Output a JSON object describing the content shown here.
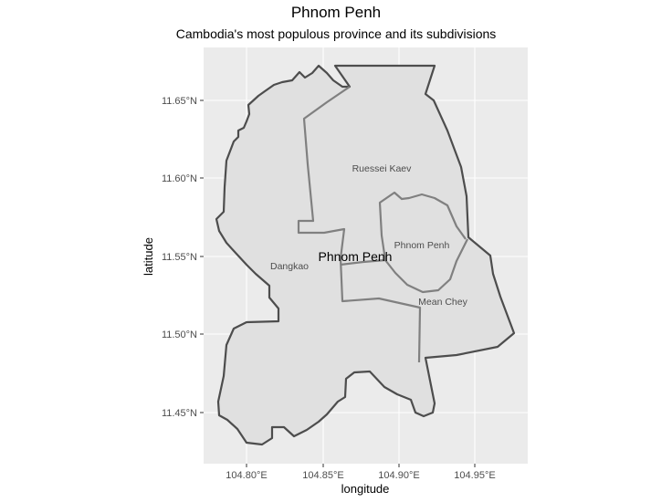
{
  "title": "Phnom Penh",
  "subtitle": "Cambodia's most populous province and its subdivisions",
  "axes": {
    "xlabel": "longitude",
    "ylabel": "latitude",
    "x_ticks": [
      "104.80°E",
      "104.85°E",
      "104.90°E",
      "104.95°E"
    ],
    "y_ticks": [
      "11.65°N",
      "11.60°N",
      "11.55°N",
      "11.50°N",
      "11.45°N"
    ]
  },
  "labels": {
    "province": "Phnom Penh",
    "districts": [
      "Ruessei Kaev",
      "Phnom Penh",
      "Dangkao",
      "Mean Chey"
    ]
  },
  "colors": {
    "panel": "#ebebeb",
    "grid": "#ffffff",
    "fill": "#e0e0e0",
    "outer_stroke": "#4d4d4d",
    "inner_stroke": "#808080"
  }
}
